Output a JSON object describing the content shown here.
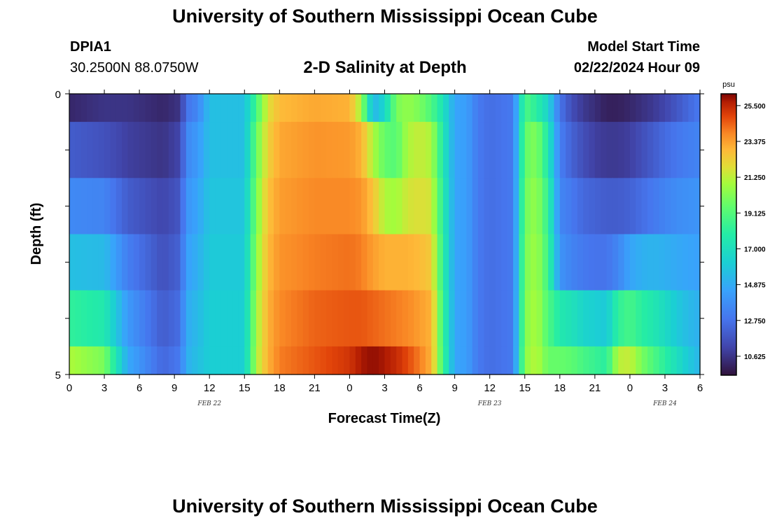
{
  "header": {
    "title": "University of Southern Mississippi Ocean Cube",
    "station": "DPIA1",
    "coordinates": "30.2500N  88.0750W",
    "subtitle": "2-D Salinity at Depth",
    "model_start_label": "Model Start Time",
    "model_start_value": "02/22/2024 Hour 09",
    "footer_title": "University of Southern Mississippi Ocean Cube"
  },
  "chart_data": {
    "type": "heatmap",
    "title": "2-D Salinity at Depth",
    "xlabel": "Forecast Time(Z)",
    "ylabel": "Depth (ft)",
    "x_tick_labels": [
      "0",
      "3",
      "6",
      "9",
      "12",
      "15",
      "18",
      "21",
      "0",
      "3",
      "6",
      "9",
      "12",
      "15",
      "18",
      "21",
      "0",
      "3",
      "6"
    ],
    "x_range_hours": [
      0,
      54
    ],
    "y_tick_labels": [
      "0",
      "5"
    ],
    "ylim": [
      0,
      5
    ],
    "date_labels": [
      {
        "text": "FEB 22",
        "hour": 12
      },
      {
        "text": "FEB 23",
        "hour": 36
      },
      {
        "text": "FEB 24",
        "hour": 51
      }
    ],
    "colorbar": {
      "unit": "psu",
      "min": 9.5,
      "max": 26.2,
      "tick_labels": [
        "25.500",
        "23.375",
        "21.250",
        "19.125",
        "17.000",
        "14.875",
        "12.750",
        "10.625"
      ],
      "tick_values": [
        25.5,
        23.375,
        21.25,
        19.125,
        17.0,
        14.875,
        12.75,
        10.625
      ]
    },
    "depth_levels": [
      "0-0.5",
      "0.5-1.5",
      "1.5-2.5",
      "2.5-3.5",
      "3.5-4.5",
      "4.5-5"
    ],
    "time_keyframes_hours": [
      0,
      3,
      5,
      8,
      9.5,
      10,
      11,
      12,
      15,
      16,
      17,
      18,
      21,
      24,
      25,
      26,
      27,
      28,
      29,
      30,
      31,
      32,
      33,
      34,
      35,
      36,
      37,
      38,
      39,
      40,
      41,
      42,
      43,
      44,
      45,
      46,
      47,
      48,
      49,
      50,
      51,
      52,
      53,
      54
    ],
    "salinity_keyframes": [
      [
        10.2,
        10.6,
        10.6,
        10.2,
        10.6,
        12.8,
        13.5,
        15.6,
        15.6,
        18.8,
        21.8,
        22.8,
        23.2,
        23.0,
        20.8,
        15.2,
        16.5,
        20.0,
        20.5,
        20.0,
        19.0,
        17.2,
        14.6,
        14.4,
        13.0,
        12.6,
        12.8,
        13.0,
        19.0,
        18.0,
        16.5,
        12.8,
        11.5,
        10.8,
        10.4,
        10.0,
        10.0,
        10.2,
        10.5,
        10.8,
        11.2,
        11.8,
        12.4,
        13.0
      ],
      [
        12.0,
        11.6,
        11.0,
        10.6,
        11.2,
        13.5,
        14.2,
        15.6,
        15.6,
        19.6,
        22.2,
        23.2,
        23.6,
        23.5,
        23.0,
        21.0,
        19.5,
        19.2,
        21.0,
        21.4,
        21.0,
        17.5,
        14.6,
        14.4,
        13.0,
        12.6,
        12.8,
        13.0,
        19.5,
        20.2,
        17.5,
        13.2,
        12.2,
        11.5,
        11.0,
        10.8,
        10.8,
        11.0,
        11.5,
        12.0,
        12.5,
        12.9,
        13.2,
        13.4
      ],
      [
        13.6,
        13.4,
        12.0,
        11.2,
        11.8,
        14.0,
        14.6,
        15.8,
        15.8,
        20.0,
        22.6,
        23.4,
        23.8,
        23.8,
        23.6,
        22.6,
        21.0,
        20.8,
        21.6,
        21.8,
        21.6,
        17.8,
        14.6,
        14.4,
        13.0,
        12.6,
        12.8,
        13.0,
        19.8,
        20.6,
        18.2,
        13.5,
        13.0,
        12.4,
        12.2,
        12.0,
        12.0,
        12.2,
        12.6,
        13.0,
        13.4,
        13.7,
        13.9,
        14.0
      ],
      [
        15.6,
        15.4,
        13.2,
        11.6,
        12.2,
        14.4,
        15.0,
        16.0,
        16.0,
        20.4,
        22.8,
        23.6,
        24.0,
        24.2,
        24.0,
        23.4,
        23.0,
        23.0,
        23.0,
        22.8,
        22.4,
        18.0,
        14.6,
        14.4,
        13.0,
        12.6,
        12.8,
        13.0,
        20.0,
        20.8,
        18.6,
        14.0,
        13.4,
        13.0,
        12.8,
        12.8,
        13.5,
        14.6,
        15.0,
        15.2,
        15.0,
        14.8,
        14.6,
        14.5
      ],
      [
        18.2,
        17.6,
        14.2,
        12.0,
        12.6,
        14.8,
        15.4,
        16.2,
        16.2,
        20.8,
        23.0,
        23.8,
        24.4,
        24.6,
        24.6,
        24.4,
        24.2,
        24.0,
        23.8,
        23.4,
        23.0,
        18.4,
        14.6,
        14.4,
        13.0,
        12.6,
        12.8,
        13.0,
        20.2,
        21.0,
        19.0,
        17.6,
        17.2,
        16.5,
        16.2,
        16.0,
        18.2,
        18.8,
        18.0,
        17.5,
        16.8,
        16.0,
        15.4,
        15.0
      ],
      [
        21.0,
        20.0,
        14.8,
        12.4,
        13.0,
        15.0,
        15.6,
        16.2,
        16.2,
        21.0,
        23.0,
        24.0,
        24.6,
        25.2,
        25.8,
        26.0,
        25.8,
        25.4,
        24.8,
        24.0,
        23.0,
        18.6,
        14.6,
        14.4,
        13.0,
        12.6,
        12.8,
        13.0,
        20.4,
        21.2,
        19.6,
        19.6,
        19.4,
        18.8,
        18.4,
        18.0,
        21.2,
        21.4,
        20.0,
        19.0,
        18.0,
        17.0,
        16.0,
        15.2
      ]
    ]
  }
}
